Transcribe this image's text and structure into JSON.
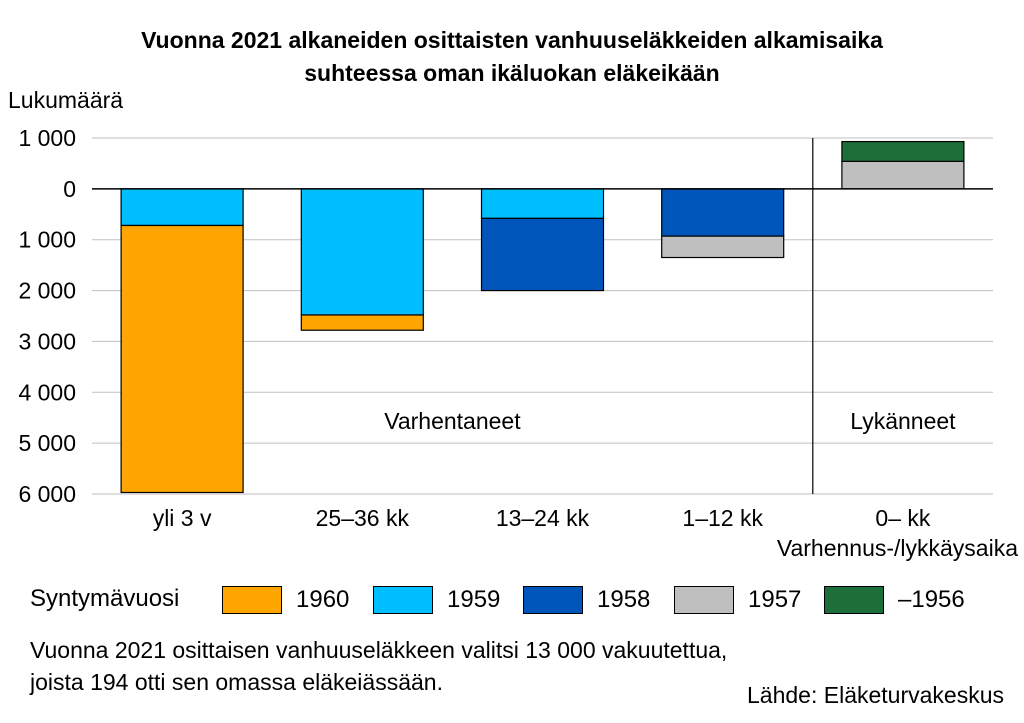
{
  "chart_data": {
    "type": "bar",
    "stacked": true,
    "title": [
      "Vuonna 2021 alkaneiden osittaisten vanhuuseläkkeiden alkamisaika",
      "suhteessa oman ikäluokan eläkeikään"
    ],
    "ylabel": "Lukumäärä",
    "xlabel": "Varhennus-/lykkäysaika",
    "y_tick_values": [
      1000,
      0,
      -1000,
      -2000,
      -3000,
      -4000,
      -5000,
      -6000
    ],
    "y_tick_labels": [
      "1 000",
      "0",
      "1 000",
      "2 000",
      "3 000",
      "4 000",
      "5 000",
      "6 000"
    ],
    "ylim": [
      -6000,
      1000
    ],
    "grid": true,
    "categories": [
      "yli 3 v",
      "25–36 kk",
      "13–24 kk",
      "1–12 kk",
      "0– kk"
    ],
    "series": [
      {
        "name": "1960",
        "color": "#FFA500",
        "values": [
          -5250,
          -300,
          0,
          0,
          0
        ]
      },
      {
        "name": "1959",
        "color": "#00BFFF",
        "values": [
          -720,
          -2480,
          -580,
          0,
          0
        ]
      },
      {
        "name": "1958",
        "color": "#0055BB",
        "values": [
          0,
          0,
          -1420,
          -930,
          0
        ]
      },
      {
        "name": "1957",
        "color": "#BFBFBF",
        "values": [
          0,
          0,
          0,
          -420,
          540
        ]
      },
      {
        "name": "–1956",
        "color": "#1E6E3A",
        "values": [
          0,
          0,
          0,
          0,
          390
        ]
      }
    ],
    "stack_order": [
      "1959",
      "1960",
      "1958",
      "1957",
      "–1956"
    ],
    "annotations": [
      {
        "text": "Varhentaneet",
        "category_span": [
          0,
          3
        ]
      },
      {
        "text": "Lykänneet",
        "category_span": [
          4,
          4
        ]
      }
    ],
    "divider_after_category": 3,
    "legend_title": "Syntymävuosi",
    "legend_position": "bottom"
  },
  "note": [
    "Vuonna 2021 osittaisen vanhuuseläkkeen valitsi 13 000 vakuutettua,",
    "joista 194 otti sen omassa eläkeiässään."
  ],
  "source": "Lähde: Eläketurvakeskus"
}
